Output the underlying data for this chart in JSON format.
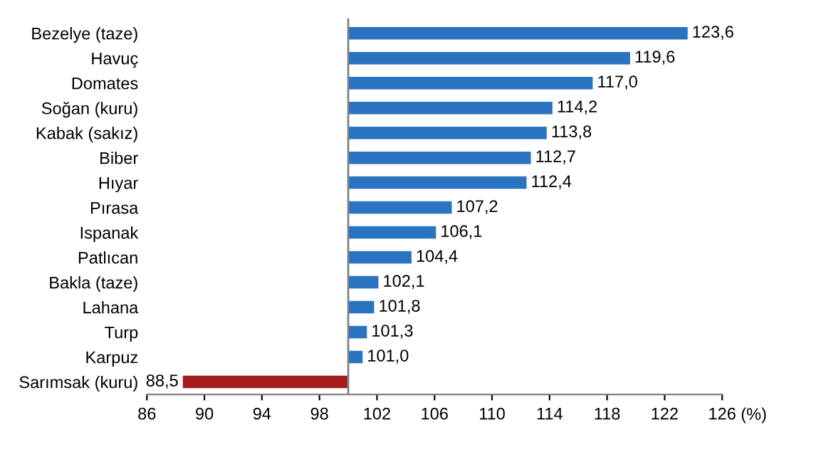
{
  "chart_data": {
    "type": "bar",
    "orientation": "horizontal",
    "categories": [
      "Bezelye (taze)",
      "Havuç",
      "Domates",
      "Soğan (kuru)",
      "Kabak (sakız)",
      "Biber",
      "Hıyar",
      "Pırasa",
      "Ispanak",
      "Patlıcan",
      "Bakla (taze)",
      "Lahana",
      "Turp",
      "Karpuz",
      "Sarımsak (kuru)"
    ],
    "base": [
      100,
      100,
      100,
      100,
      100,
      100,
      100,
      100,
      100,
      100,
      100,
      100,
      100,
      100,
      100
    ],
    "values": [
      23.6,
      19.6,
      17.0,
      14.2,
      13.8,
      12.7,
      12.4,
      7.2,
      6.1,
      4.4,
      2.1,
      1.8,
      1.3,
      1.0,
      -11.5
    ],
    "value_labels": [
      "123,6",
      "119,6",
      "117,0",
      "114,2",
      "113,8",
      "112,7",
      "112,4",
      "107,2",
      "106,1",
      "104,4",
      "102,1",
      "101,8",
      "101,3",
      "101,0",
      "88,5"
    ],
    "colors": [
      "#2a73c0",
      "#2a73c0",
      "#2a73c0",
      "#2a73c0",
      "#2a73c0",
      "#2a73c0",
      "#2a73c0",
      "#2a73c0",
      "#2a73c0",
      "#2a73c0",
      "#2a73c0",
      "#2a73c0",
      "#2a73c0",
      "#2a73c0",
      "#a51c1c"
    ],
    "xlim": [
      86,
      126
    ],
    "xticks": [
      86,
      90,
      94,
      98,
      102,
      106,
      110,
      114,
      118,
      122,
      126
    ],
    "ref_lines": [
      {
        "axis": "x",
        "value": 100,
        "color": "#808080"
      }
    ],
    "xlabel": "(%)",
    "grid": false,
    "legend": false
  }
}
